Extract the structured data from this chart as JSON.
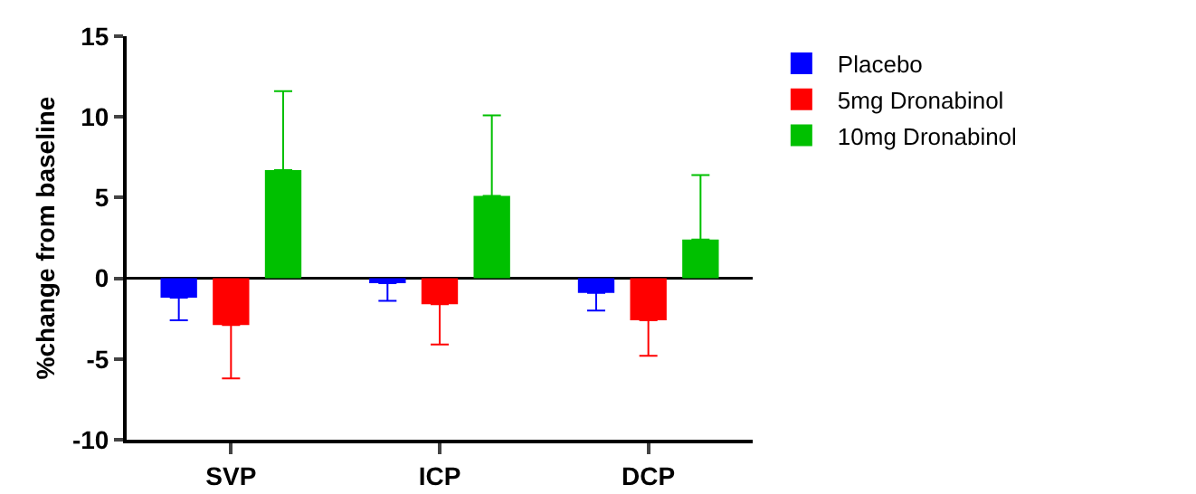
{
  "chart_data": {
    "type": "bar",
    "ylabel": "%change from baseline",
    "categories": [
      "SVP",
      "ICP",
      "DCP"
    ],
    "series": [
      {
        "name": "Placebo",
        "color": "#0000ff",
        "values": [
          -1.2,
          -0.3,
          -0.9
        ],
        "errors": [
          [
            -2.6,
            -1.2
          ],
          [
            -1.4,
            -0.3
          ],
          [
            -2.0,
            -0.9
          ]
        ]
      },
      {
        "name": "5mg Dronabinol",
        "color": "#ff0000",
        "values": [
          -2.9,
          -1.6,
          -2.6
        ],
        "errors": [
          [
            -6.2,
            -2.9
          ],
          [
            -4.1,
            -1.6
          ],
          [
            -4.8,
            -2.6
          ]
        ]
      },
      {
        "name": "10mg Dronabinol",
        "color": "#00c000",
        "values": [
          6.7,
          5.1,
          2.4
        ],
        "errors": [
          [
            6.7,
            11.6
          ],
          [
            5.1,
            10.1
          ],
          [
            2.4,
            6.4
          ]
        ]
      }
    ],
    "ylim": [
      -10,
      15
    ],
    "yticks": [
      -10,
      -5,
      0,
      5,
      10,
      15
    ],
    "ref_lines": [
      {
        "axis": "y",
        "value": 0,
        "color": "#000000"
      }
    ],
    "grid": false,
    "legend": "top right"
  }
}
